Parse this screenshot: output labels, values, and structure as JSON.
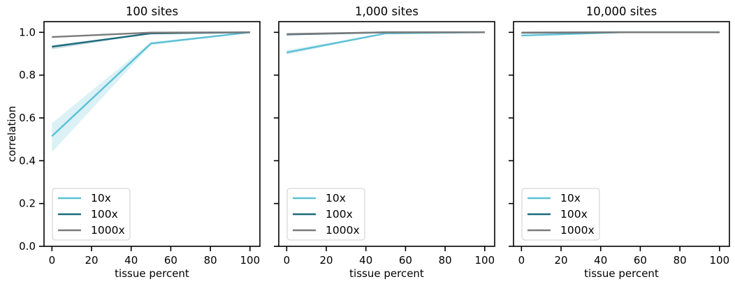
{
  "chart_data": [
    {
      "type": "line",
      "title": "100 sites",
      "xlabel": "tissue percent",
      "ylabel": "correlation",
      "xlim": [
        -4,
        105
      ],
      "ylim": [
        0.0,
        1.05
      ],
      "xticks": [
        "0",
        "20",
        "40",
        "60",
        "80",
        "100"
      ],
      "yticks": [
        "0.0",
        "0.2",
        "0.4",
        "0.6",
        "0.8",
        "1.0"
      ],
      "legend_position": "lower-left",
      "series": [
        {
          "name": "10x",
          "color": "#5bc0d6",
          "x": [
            0,
            50,
            100
          ],
          "y": [
            0.515,
            0.948,
            1.0
          ],
          "ci_low": [
            0.44,
            0.94,
            1.0
          ],
          "ci_high": [
            0.575,
            0.955,
            1.0
          ]
        },
        {
          "name": "100x",
          "color": "#1b6a7d",
          "x": [
            0,
            50,
            100
          ],
          "y": [
            0.933,
            0.995,
            1.0
          ],
          "ci_low": [
            0.92,
            0.993,
            1.0
          ],
          "ci_high": [
            0.94,
            0.997,
            1.0
          ]
        },
        {
          "name": "1000x",
          "color": "#7a7a7a",
          "x": [
            0,
            50,
            100
          ],
          "y": [
            0.978,
            0.999,
            1.0
          ],
          "ci_low": [
            0.975,
            0.998,
            1.0
          ],
          "ci_high": [
            0.981,
            1.0,
            1.0
          ]
        }
      ]
    },
    {
      "type": "line",
      "title": "1,000 sites",
      "xlabel": "tissue percent",
      "ylabel": "",
      "xlim": [
        -4,
        105
      ],
      "ylim": [
        0.0,
        1.05
      ],
      "xticks": [
        "0",
        "20",
        "40",
        "60",
        "80",
        "100"
      ],
      "yticks": [
        "",
        "",
        "",
        "",
        "",
        ""
      ],
      "legend_position": "lower-left",
      "series": [
        {
          "name": "10x",
          "color": "#5bc0d6",
          "x": [
            0,
            50,
            100
          ],
          "y": [
            0.906,
            0.995,
            1.0
          ],
          "ci_low": [
            0.895,
            0.993,
            1.0
          ],
          "ci_high": [
            0.917,
            0.997,
            1.0
          ]
        },
        {
          "name": "100x",
          "color": "#1b6a7d",
          "x": [
            0,
            50,
            100
          ],
          "y": [
            0.99,
            1.0,
            1.0
          ],
          "ci_low": [
            0.988,
            1.0,
            1.0
          ],
          "ci_high": [
            0.992,
            1.0,
            1.0
          ]
        },
        {
          "name": "1000x",
          "color": "#7a7a7a",
          "x": [
            0,
            50,
            100
          ],
          "y": [
            0.992,
            1.0,
            1.0
          ],
          "ci_low": [
            0.99,
            1.0,
            1.0
          ],
          "ci_high": [
            0.994,
            1.0,
            1.0
          ]
        }
      ]
    },
    {
      "type": "line",
      "title": "10,000 sites",
      "xlabel": "tissue percent",
      "ylabel": "",
      "xlim": [
        -4,
        105
      ],
      "ylim": [
        0.0,
        1.05
      ],
      "xticks": [
        "0",
        "20",
        "40",
        "60",
        "80",
        "100"
      ],
      "yticks": [
        "",
        "",
        "",
        "",
        "",
        ""
      ],
      "legend_position": "lower-left",
      "series": [
        {
          "name": "10x",
          "color": "#5bc0d6",
          "x": [
            0,
            50,
            100
          ],
          "y": [
            0.985,
            1.0,
            1.0
          ],
          "ci_low": [
            0.982,
            1.0,
            1.0
          ],
          "ci_high": [
            0.988,
            1.0,
            1.0
          ]
        },
        {
          "name": "100x",
          "color": "#1b6a7d",
          "x": [
            0,
            50,
            100
          ],
          "y": [
            0.998,
            1.0,
            1.0
          ],
          "ci_low": [
            0.997,
            1.0,
            1.0
          ],
          "ci_high": [
            0.999,
            1.0,
            1.0
          ]
        },
        {
          "name": "1000x",
          "color": "#7a7a7a",
          "x": [
            0,
            50,
            100
          ],
          "y": [
            0.999,
            1.0,
            1.0
          ],
          "ci_low": [
            0.998,
            1.0,
            1.0
          ],
          "ci_high": [
            1.0,
            1.0,
            1.0
          ]
        }
      ]
    }
  ]
}
